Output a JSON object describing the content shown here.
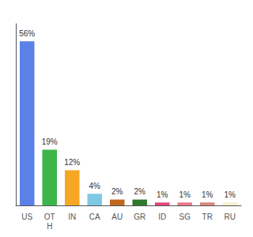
{
  "chart_data": {
    "type": "bar",
    "categories": [
      "US",
      "OT\nH",
      "IN",
      "CA",
      "AU",
      "GR",
      "ID",
      "SG",
      "TR",
      "RU"
    ],
    "values": [
      56,
      19,
      12,
      4,
      2,
      2,
      1,
      1,
      1,
      1
    ],
    "value_labels": [
      "56%",
      "19%",
      "12%",
      "4%",
      "2%",
      "2%",
      "1%",
      "1%",
      "1%",
      "1%"
    ],
    "colors": [
      "#5b80e8",
      "#3cb54a",
      "#f5a623",
      "#7ec8e3",
      "#c0671e",
      "#2d7a2d",
      "#e8457a",
      "#e87a8a",
      "#d9897a",
      "#f5f0d0"
    ],
    "ylim": [
      0,
      62
    ],
    "grid": false,
    "data_labels": true,
    "tick_labels": "x"
  }
}
